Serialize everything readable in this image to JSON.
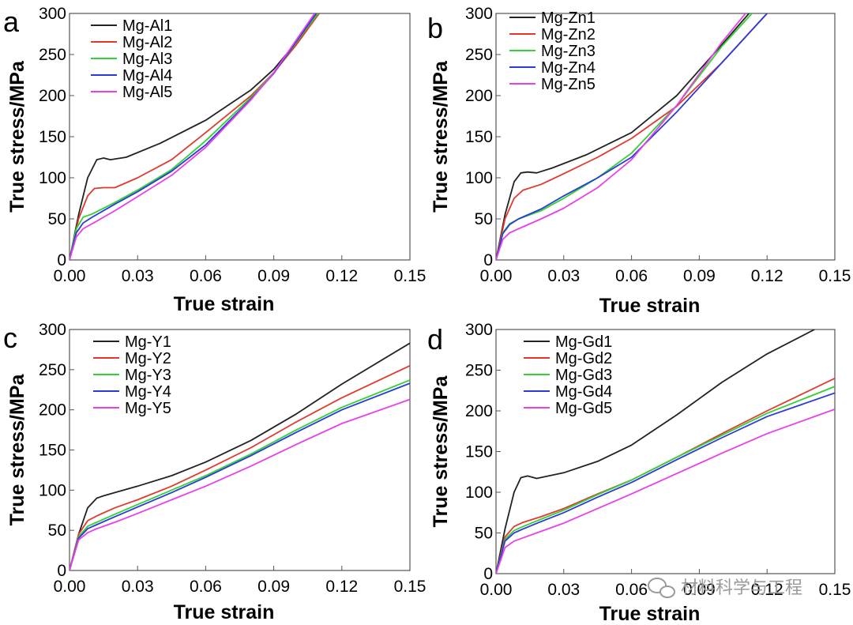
{
  "watermark": "材料科学与工程",
  "chart_data": [
    {
      "type": "line",
      "panel": "a",
      "xlabel": "True strain",
      "ylabel": "True stress/MPa",
      "xlim": [
        0,
        0.15
      ],
      "ylim": [
        0,
        300
      ],
      "xticks": [
        "0.00",
        "0.03",
        "0.06",
        "0.09",
        "0.12",
        "0.15"
      ],
      "yticks": [
        "0",
        "50",
        "100",
        "150",
        "200",
        "250",
        "300"
      ],
      "legend": "top-left",
      "series": [
        {
          "name": "Mg-Al1",
          "color": "#222222",
          "x": [
            0,
            0.004,
            0.008,
            0.012,
            0.015,
            0.018,
            0.025,
            0.04,
            0.06,
            0.08,
            0.09,
            0.1,
            0.11
          ],
          "y": [
            0,
            55,
            100,
            122,
            124,
            122,
            125,
            142,
            170,
            207,
            232,
            265,
            300
          ]
        },
        {
          "name": "Mg-Al2",
          "color": "#e03a2f",
          "x": [
            0,
            0.004,
            0.008,
            0.011,
            0.015,
            0.02,
            0.03,
            0.045,
            0.06,
            0.08,
            0.09,
            0.1,
            0.11
          ],
          "y": [
            0,
            50,
            78,
            87,
            88,
            88,
            100,
            122,
            155,
            200,
            228,
            262,
            300
          ]
        },
        {
          "name": "Mg-Al3",
          "color": "#34d134",
          "x": [
            0,
            0.003,
            0.006,
            0.01,
            0.02,
            0.03,
            0.045,
            0.06,
            0.08,
            0.09,
            0.1,
            0.11
          ],
          "y": [
            0,
            38,
            52,
            56,
            70,
            85,
            110,
            145,
            198,
            228,
            265,
            302
          ]
        },
        {
          "name": "Mg-Al4",
          "color": "#2a3bd6",
          "x": [
            0,
            0.003,
            0.006,
            0.01,
            0.02,
            0.03,
            0.045,
            0.06,
            0.08,
            0.09,
            0.1,
            0.11
          ],
          "y": [
            0,
            33,
            45,
            52,
            68,
            83,
            108,
            140,
            196,
            227,
            266,
            305
          ]
        },
        {
          "name": "Mg-Al5",
          "color": "#e840e8",
          "x": [
            0,
            0.003,
            0.006,
            0.01,
            0.02,
            0.03,
            0.045,
            0.06,
            0.08,
            0.09,
            0.1,
            0.11
          ],
          "y": [
            0,
            28,
            38,
            44,
            60,
            77,
            103,
            137,
            195,
            228,
            268,
            308
          ]
        }
      ]
    },
    {
      "type": "line",
      "panel": "b",
      "xlabel": "True strain",
      "ylabel": "True stress/MPa",
      "xlim": [
        0,
        0.15
      ],
      "ylim": [
        0,
        300
      ],
      "xticks": [
        "0.00",
        "0.03",
        "0.06",
        "0.09",
        "0.12",
        "0.15"
      ],
      "yticks": [
        "0",
        "50",
        "100",
        "150",
        "200",
        "250",
        "300"
      ],
      "legend": "top-left",
      "series": [
        {
          "name": "Mg-Zn1",
          "color": "#222222",
          "x": [
            0,
            0.004,
            0.008,
            0.011,
            0.014,
            0.018,
            0.025,
            0.04,
            0.06,
            0.08,
            0.1,
            0.112
          ],
          "y": [
            0,
            55,
            95,
            106,
            107,
            106,
            112,
            128,
            155,
            200,
            262,
            300
          ]
        },
        {
          "name": "Mg-Zn2",
          "color": "#e03a2f",
          "x": [
            0,
            0.004,
            0.008,
            0.012,
            0.02,
            0.03,
            0.045,
            0.06,
            0.08,
            0.1,
            0.12
          ],
          "y": [
            0,
            50,
            75,
            85,
            92,
            105,
            125,
            148,
            187,
            240,
            300
          ]
        },
        {
          "name": "Mg-Zn3",
          "color": "#34d134",
          "x": [
            0,
            0.003,
            0.006,
            0.01,
            0.02,
            0.03,
            0.045,
            0.06,
            0.08,
            0.1,
            0.114
          ],
          "y": [
            0,
            33,
            44,
            50,
            60,
            75,
            100,
            130,
            188,
            260,
            302
          ]
        },
        {
          "name": "Mg-Zn4",
          "color": "#2a3bd6",
          "x": [
            0,
            0.003,
            0.006,
            0.01,
            0.02,
            0.03,
            0.045,
            0.06,
            0.08,
            0.1,
            0.12
          ],
          "y": [
            0,
            32,
            43,
            50,
            62,
            78,
            100,
            125,
            180,
            240,
            300
          ]
        },
        {
          "name": "Mg-Zn5",
          "color": "#e840e8",
          "x": [
            0,
            0.003,
            0.006,
            0.01,
            0.02,
            0.03,
            0.045,
            0.06,
            0.08,
            0.1,
            0.112
          ],
          "y": [
            0,
            25,
            33,
            38,
            50,
            63,
            88,
            122,
            188,
            265,
            305
          ]
        }
      ]
    },
    {
      "type": "line",
      "panel": "c",
      "xlabel": "True strain",
      "ylabel": "True stress/MPa",
      "xlim": [
        0,
        0.15
      ],
      "ylim": [
        0,
        300
      ],
      "xticks": [
        "0.00",
        "0.03",
        "0.06",
        "0.09",
        "0.12",
        "0.15"
      ],
      "yticks": [
        "0",
        "50",
        "100",
        "150",
        "200",
        "250",
        "300"
      ],
      "legend": "top-left",
      "series": [
        {
          "name": "Mg-Y1",
          "color": "#222222",
          "x": [
            0,
            0.004,
            0.008,
            0.012,
            0.015,
            0.02,
            0.03,
            0.045,
            0.06,
            0.08,
            0.1,
            0.12,
            0.15
          ],
          "y": [
            0,
            45,
            78,
            90,
            93,
            97,
            105,
            118,
            135,
            162,
            195,
            232,
            283
          ]
        },
        {
          "name": "Mg-Y2",
          "color": "#e03a2f",
          "x": [
            0,
            0.004,
            0.008,
            0.012,
            0.02,
            0.03,
            0.045,
            0.06,
            0.08,
            0.1,
            0.12,
            0.15
          ],
          "y": [
            0,
            45,
            62,
            68,
            78,
            88,
            105,
            125,
            153,
            185,
            215,
            255
          ]
        },
        {
          "name": "Mg-Y3",
          "color": "#34d134",
          "x": [
            0,
            0.004,
            0.008,
            0.012,
            0.02,
            0.03,
            0.045,
            0.06,
            0.08,
            0.1,
            0.12,
            0.15
          ],
          "y": [
            0,
            42,
            55,
            60,
            70,
            82,
            100,
            118,
            145,
            175,
            203,
            237
          ]
        },
        {
          "name": "Mg-Y4",
          "color": "#2a3bd6",
          "x": [
            0,
            0.004,
            0.008,
            0.012,
            0.02,
            0.03,
            0.045,
            0.06,
            0.08,
            0.1,
            0.12,
            0.15
          ],
          "y": [
            0,
            40,
            52,
            57,
            67,
            79,
            97,
            116,
            143,
            172,
            200,
            233
          ]
        },
        {
          "name": "Mg-Y5",
          "color": "#e840e8",
          "x": [
            0,
            0.004,
            0.008,
            0.012,
            0.02,
            0.03,
            0.045,
            0.06,
            0.08,
            0.1,
            0.12,
            0.15
          ],
          "y": [
            0,
            38,
            47,
            52,
            60,
            71,
            88,
            105,
            130,
            157,
            183,
            213
          ]
        }
      ]
    },
    {
      "type": "line",
      "panel": "d",
      "xlabel": "True strain",
      "ylabel": "True stress/MPa",
      "xlim": [
        0,
        0.15
      ],
      "ylim": [
        0,
        300
      ],
      "xticks": [
        "0.00",
        "0.03",
        "0.06",
        "0.09",
        "0.12",
        "0.15"
      ],
      "yticks": [
        "0",
        "50",
        "100",
        "150",
        "200",
        "250",
        "300"
      ],
      "legend": "top-left",
      "series": [
        {
          "name": "Mg-Gd1",
          "color": "#222222",
          "x": [
            0,
            0.004,
            0.008,
            0.011,
            0.014,
            0.018,
            0.03,
            0.045,
            0.06,
            0.08,
            0.1,
            0.12,
            0.141
          ],
          "y": [
            0,
            55,
            100,
            118,
            120,
            117,
            124,
            138,
            158,
            195,
            235,
            270,
            300
          ]
        },
        {
          "name": "Mg-Gd2",
          "color": "#e03a2f",
          "x": [
            0,
            0.004,
            0.008,
            0.012,
            0.02,
            0.03,
            0.045,
            0.06,
            0.08,
            0.1,
            0.12,
            0.15
          ],
          "y": [
            0,
            45,
            58,
            63,
            70,
            80,
            98,
            115,
            143,
            172,
            200,
            240
          ]
        },
        {
          "name": "Mg-Gd3",
          "color": "#34d134",
          "x": [
            0,
            0.004,
            0.008,
            0.012,
            0.02,
            0.03,
            0.045,
            0.06,
            0.08,
            0.1,
            0.12,
            0.15
          ],
          "y": [
            0,
            42,
            53,
            58,
            67,
            78,
            97,
            115,
            143,
            170,
            197,
            230
          ]
        },
        {
          "name": "Mg-Gd4",
          "color": "#2a3bd6",
          "x": [
            0,
            0.004,
            0.008,
            0.012,
            0.02,
            0.03,
            0.045,
            0.06,
            0.08,
            0.1,
            0.12,
            0.15
          ],
          "y": [
            0,
            40,
            50,
            55,
            64,
            75,
            94,
            112,
            140,
            167,
            193,
            222
          ]
        },
        {
          "name": "Mg-Gd5",
          "color": "#e840e8",
          "x": [
            0,
            0.004,
            0.008,
            0.012,
            0.02,
            0.03,
            0.045,
            0.06,
            0.08,
            0.1,
            0.12,
            0.15
          ],
          "y": [
            0,
            32,
            40,
            44,
            52,
            62,
            80,
            98,
            123,
            148,
            172,
            202
          ]
        }
      ]
    }
  ]
}
